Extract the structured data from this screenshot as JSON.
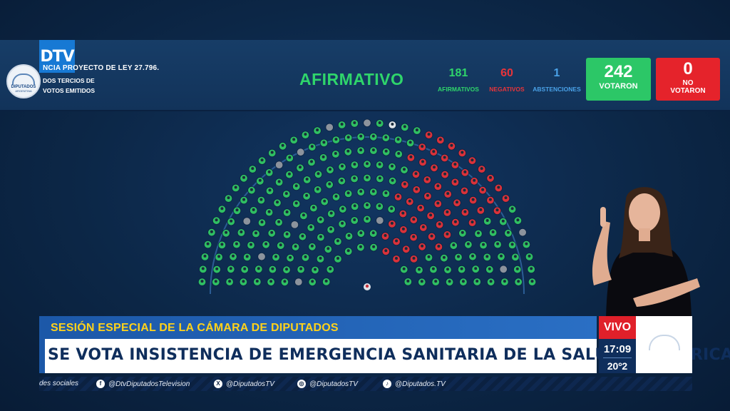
{
  "header": {
    "channel_logo": "DTV",
    "seal_text": "DIPUTADOS",
    "seal_subtext": "ARGENTINA",
    "project_title": "NCIA PROYECTO DE LEY 27.796.",
    "requirement_line1": "DOS TERCIOS DE",
    "requirement_line2": "VOTOS EMITIDOS",
    "result": "AFIRMATIVO"
  },
  "tally": {
    "afirmativos": {
      "value": "181",
      "label": "AFIRMATIVOS",
      "color": "#2fd56b"
    },
    "negativos": {
      "value": "60",
      "label": "NEGATIVOS",
      "color": "#e8343a"
    },
    "abstenciones": {
      "value": "1",
      "label": "ABSTENCIONES",
      "color": "#4aa2e8"
    },
    "votaron": {
      "value": "242",
      "label": "VOTARON",
      "color": "#2cc767"
    },
    "no_votaron": {
      "value": "0",
      "label_line1": "NO",
      "label_line2": "VOTARON",
      "color": "#e5232b"
    }
  },
  "hemicycle": {
    "rows": 10,
    "seat_counts": {
      "afirmativo": 181,
      "negativo": 60,
      "abstencion": 1,
      "ausente": 15
    },
    "colors": {
      "afirmativo": "#2fbf63",
      "negativo": "#d9323a",
      "ausente": "#8c939d",
      "abstencion": "#e0e4ea"
    }
  },
  "lower_third": {
    "session": "SESIÓN ESPECIAL DE LA CÁMARA DE DIPUTADOS",
    "headline": "SE VOTA INSISTENCIA DE EMERGENCIA SANITARIA DE LA SALUD PEDIÁTRICA",
    "live": "VIVO",
    "time": "17:09",
    "temperature": "20º2"
  },
  "social": {
    "prefix": "des sociales",
    "facebook": "@DtvDiputadosTelevision",
    "x": "@DiputadosTV",
    "instagram": "@DiputadosTV",
    "tiktok": "@Diputados.TV",
    "icons": [
      "facebook-icon",
      "x-icon",
      "instagram-icon",
      "tiktok-icon"
    ]
  }
}
